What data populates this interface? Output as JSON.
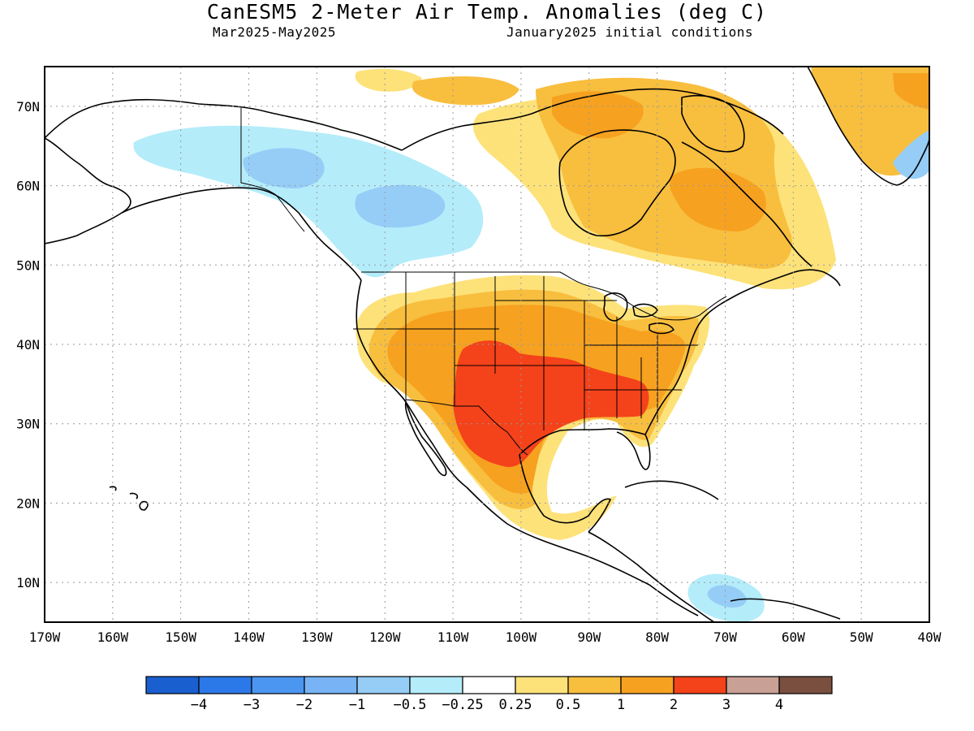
{
  "title": "CanESM5 2-Meter Air Temp. Anomalies (deg C)",
  "subtitle_left": "Mar2025-May2025",
  "subtitle_right": "January2025 initial conditions",
  "lat_labels": [
    "10N",
    "20N",
    "30N",
    "40N",
    "50N",
    "60N",
    "70N"
  ],
  "lon_labels": [
    "170W",
    "160W",
    "150W",
    "140W",
    "130W",
    "120W",
    "110W",
    "100W",
    "90W",
    "80W",
    "70W",
    "60W",
    "50W",
    "40W"
  ],
  "colorbar": {
    "colors": [
      "#1a5fd0",
      "#2b78e8",
      "#4b96f0",
      "#78b4f5",
      "#96cdf7",
      "#b4ecfa",
      "#ffffff",
      "#fde27a",
      "#f8be3e",
      "#f6a11f",
      "#f4421a",
      "#c9a096",
      "#7a4f40"
    ],
    "labels": [
      "-4",
      "-3",
      "-2",
      "-1",
      "-0.5",
      "-0.25",
      "0.25",
      "0.5",
      "1",
      "2",
      "3",
      "4"
    ]
  },
  "map_extent": {
    "lon_min": -170,
    "lon_max": -40,
    "lat_min": 5,
    "lat_max": 75
  }
}
